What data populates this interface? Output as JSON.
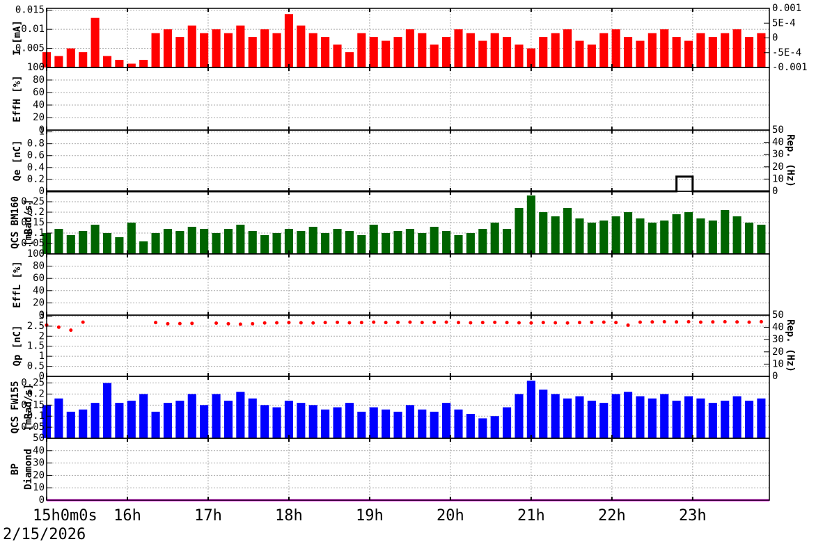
{
  "chart_data": [
    {
      "type": "bar",
      "ylabel": [
        "I [mA]"
      ],
      "ylim": [
        0,
        0.0155
      ],
      "yticks": [
        0,
        0.005,
        0.01,
        0.015
      ],
      "y2lim": [
        -0.001,
        0.001
      ],
      "y2ticks": [
        {
          "value": 0.001,
          "label": "0.001"
        },
        {
          "value": 0.0005,
          "label": "5E-4"
        },
        0,
        {
          "value": -0.0005,
          "label": "-5E-4"
        },
        {
          "value": -0.001,
          "label": "-0.001"
        }
      ],
      "grid": true,
      "x": [
        15,
        15.15,
        15.3,
        15.45,
        15.6,
        15.75,
        15.9,
        16.05,
        16.2,
        16.35,
        16.5,
        16.65,
        16.8,
        16.95,
        17.1,
        17.25,
        17.4,
        17.55,
        17.7,
        17.85,
        18,
        18.15,
        18.3,
        18.45,
        18.6,
        18.75,
        18.9,
        19.05,
        19.2,
        19.35,
        19.5,
        19.65,
        19.8,
        19.95,
        20.1,
        20.25,
        20.4,
        20.55,
        20.7,
        20.85,
        21,
        21.15,
        21.3,
        21.45,
        21.6,
        21.75,
        21.9,
        22.05,
        22.2,
        22.35,
        22.5,
        22.65,
        22.8,
        22.95,
        23.1,
        23.25,
        23.4,
        23.55,
        23.7,
        23.85
      ],
      "series": [
        {
          "color": "#ff0000",
          "values": [
            0.004,
            0.003,
            0.005,
            0.004,
            0.013,
            0.003,
            0.002,
            0.001,
            0.002,
            0.009,
            0.01,
            0.008,
            0.011,
            0.009,
            0.01,
            0.009,
            0.011,
            0.008,
            0.01,
            0.009,
            0.014,
            0.011,
            0.009,
            0.008,
            0.006,
            0.004,
            0.009,
            0.008,
            0.007,
            0.008,
            0.01,
            0.009,
            0.006,
            0.008,
            0.01,
            0.009,
            0.007,
            0.009,
            0.008,
            0.006,
            0.005,
            0.008,
            0.009,
            0.01,
            0.007,
            0.006,
            0.009,
            0.01,
            0.008,
            0.007,
            0.009,
            0.01,
            0.008,
            0.007,
            0.009,
            0.008,
            0.009,
            0.01,
            0.008,
            0.009
          ]
        }
      ]
    },
    {
      "type": "bar",
      "ylabel": [
        "EffH [%]"
      ],
      "ylim": [
        0,
        100
      ],
      "yticks": [
        0,
        20,
        40,
        60,
        80,
        100
      ],
      "grid": true,
      "series": []
    },
    {
      "type": "line",
      "ylabel": [
        "Qe [nC]"
      ],
      "ylim": [
        0,
        1.03
      ],
      "yticks": [
        0,
        0.2,
        0.4,
        0.6,
        0.8,
        1
      ],
      "y2label": "Rep. (Hz)",
      "y2lim": [
        0,
        50
      ],
      "y2ticks": [
        0,
        10,
        20,
        30,
        40,
        50
      ],
      "grid": true,
      "x": [
        15,
        22.8,
        22.8,
        23,
        23,
        23.95
      ],
      "series": [
        {
          "color": "#000000",
          "axis": "y2",
          "values": [
            0,
            0,
            12,
            12,
            0,
            0
          ]
        }
      ]
    },
    {
      "type": "bar",
      "ylabel": [
        "QCS BM160",
        "[mRad/s]"
      ],
      "ylim": [
        0,
        0.3
      ],
      "yticks": [
        0,
        0.05,
        0.1,
        0.15,
        0.2,
        0.25
      ],
      "grid": true,
      "x": [
        15,
        15.15,
        15.3,
        15.45,
        15.6,
        15.75,
        15.9,
        16.05,
        16.2,
        16.35,
        16.5,
        16.65,
        16.8,
        16.95,
        17.1,
        17.25,
        17.4,
        17.55,
        17.7,
        17.85,
        18,
        18.15,
        18.3,
        18.45,
        18.6,
        18.75,
        18.9,
        19.05,
        19.2,
        19.35,
        19.5,
        19.65,
        19.8,
        19.95,
        20.1,
        20.25,
        20.4,
        20.55,
        20.7,
        20.85,
        21,
        21.15,
        21.3,
        21.45,
        21.6,
        21.75,
        21.9,
        22.05,
        22.2,
        22.35,
        22.5,
        22.65,
        22.8,
        22.95,
        23.1,
        23.25,
        23.4,
        23.55,
        23.7,
        23.85
      ],
      "series": [
        {
          "color": "#006400",
          "values": [
            0.1,
            0.12,
            0.09,
            0.11,
            0.14,
            0.1,
            0.08,
            0.15,
            0.06,
            0.1,
            0.12,
            0.11,
            0.13,
            0.12,
            0.1,
            0.12,
            0.14,
            0.11,
            0.09,
            0.1,
            0.12,
            0.11,
            0.13,
            0.1,
            0.12,
            0.11,
            0.09,
            0.14,
            0.1,
            0.11,
            0.12,
            0.1,
            0.13,
            0.11,
            0.09,
            0.1,
            0.12,
            0.15,
            0.12,
            0.22,
            0.28,
            0.2,
            0.18,
            0.22,
            0.17,
            0.15,
            0.16,
            0.18,
            0.2,
            0.17,
            0.15,
            0.16,
            0.19,
            0.2,
            0.17,
            0.16,
            0.21,
            0.18,
            0.15,
            0.14
          ]
        }
      ]
    },
    {
      "type": "bar",
      "ylabel": [
        "EffL [%]"
      ],
      "ylim": [
        0,
        100
      ],
      "yticks": [
        0,
        20,
        40,
        60,
        80,
        100
      ],
      "grid": true,
      "series": []
    },
    {
      "type": "scatter",
      "ylabel": [
        "Qp [nC]"
      ],
      "ylim": [
        0,
        3.05
      ],
      "yticks": [
        0,
        0.5,
        1,
        1.5,
        2,
        2.5,
        3
      ],
      "y2label": "Rep. (Hz)",
      "y2lim": [
        0,
        50
      ],
      "y2ticks": [
        0,
        10,
        20,
        30,
        40,
        50
      ],
      "grid": true,
      "x": [
        15,
        15.15,
        15.3,
        15.45,
        15.6,
        15.75,
        15.9,
        16.05,
        16.2,
        16.35,
        16.5,
        16.65,
        16.8,
        16.95,
        17.1,
        17.25,
        17.4,
        17.55,
        17.7,
        17.85,
        18,
        18.15,
        18.3,
        18.45,
        18.6,
        18.75,
        18.9,
        19.05,
        19.2,
        19.35,
        19.5,
        19.65,
        19.8,
        19.95,
        20.1,
        20.25,
        20.4,
        20.55,
        20.7,
        20.85,
        21,
        21.15,
        21.3,
        21.45,
        21.6,
        21.75,
        21.9,
        22.05,
        22.2,
        22.35,
        22.5,
        22.65,
        22.8,
        22.95,
        23.1,
        23.25,
        23.4,
        23.55,
        23.7,
        23.85
      ],
      "series": [
        {
          "color": "#ff0000",
          "values": [
            2.55,
            2.45,
            2.3,
            2.7,
            null,
            null,
            null,
            null,
            null,
            2.68,
            2.62,
            2.63,
            2.64,
            null,
            2.65,
            2.62,
            2.6,
            2.62,
            2.66,
            2.67,
            2.68,
            2.67,
            2.66,
            2.68,
            2.69,
            2.67,
            2.68,
            2.7,
            2.68,
            2.69,
            2.7,
            2.68,
            2.69,
            2.7,
            2.68,
            2.67,
            2.68,
            2.69,
            2.68,
            2.67,
            2.66,
            2.68,
            2.67,
            2.66,
            2.68,
            2.69,
            2.7,
            2.68,
            2.55,
            2.7,
            2.71,
            2.72,
            2.71,
            2.72,
            2.7,
            2.71,
            2.72,
            2.71,
            2.7,
            2.72
          ]
        }
      ]
    },
    {
      "type": "bar",
      "ylabel": [
        "QCS FW155",
        "[mRad/s]"
      ],
      "ylim": [
        0,
        0.28
      ],
      "yticks": [
        0.05,
        0.1,
        0.15,
        0.2,
        0.25
      ],
      "grid": true,
      "x": [
        15,
        15.15,
        15.3,
        15.45,
        15.6,
        15.75,
        15.9,
        16.05,
        16.2,
        16.35,
        16.5,
        16.65,
        16.8,
        16.95,
        17.1,
        17.25,
        17.4,
        17.55,
        17.7,
        17.85,
        18,
        18.15,
        18.3,
        18.45,
        18.6,
        18.75,
        18.9,
        19.05,
        19.2,
        19.35,
        19.5,
        19.65,
        19.8,
        19.95,
        20.1,
        20.25,
        20.4,
        20.55,
        20.7,
        20.85,
        21,
        21.15,
        21.3,
        21.45,
        21.6,
        21.75,
        21.9,
        22.05,
        22.2,
        22.35,
        22.5,
        22.65,
        22.8,
        22.95,
        23.1,
        23.25,
        23.4,
        23.55,
        23.7,
        23.85
      ],
      "series": [
        {
          "color": "#0000ff",
          "values": [
            0.15,
            0.18,
            0.12,
            0.13,
            0.16,
            0.25,
            0.16,
            0.17,
            0.2,
            0.12,
            0.16,
            0.17,
            0.2,
            0.15,
            0.2,
            0.17,
            0.21,
            0.18,
            0.15,
            0.14,
            0.17,
            0.16,
            0.15,
            0.13,
            0.14,
            0.16,
            0.12,
            0.14,
            0.13,
            0.12,
            0.15,
            0.13,
            0.12,
            0.16,
            0.13,
            0.11,
            0.09,
            0.1,
            0.14,
            0.2,
            0.26,
            0.22,
            0.2,
            0.18,
            0.19,
            0.17,
            0.16,
            0.2,
            0.21,
            0.19,
            0.18,
            0.2,
            0.17,
            0.19,
            0.18,
            0.16,
            0.17,
            0.19,
            0.17,
            0.18
          ]
        }
      ]
    },
    {
      "type": "line",
      "ylabel": [
        "BP",
        "Diamond"
      ],
      "ylim": [
        0,
        50
      ],
      "yticks": [
        0,
        10,
        20,
        30,
        40,
        50
      ],
      "grid": true,
      "x": [
        15,
        23.95
      ],
      "series": [
        {
          "color": "#ff00ff",
          "values": [
            0,
            0
          ]
        }
      ],
      "xlim": [
        15,
        23.95
      ],
      "xticks": [
        {
          "value": 15,
          "label": "15h0m0s"
        },
        {
          "value": 16,
          "label": "16h"
        },
        {
          "value": 17,
          "label": "17h"
        },
        {
          "value": 18,
          "label": "18h"
        },
        {
          "value": 19,
          "label": "19h"
        },
        {
          "value": 20,
          "label": "20h"
        },
        {
          "value": 21,
          "label": "21h"
        },
        {
          "value": 22,
          "label": "22h"
        },
        {
          "value": 23,
          "label": "23h"
        }
      ],
      "xlabel": "2/15/2026"
    }
  ]
}
